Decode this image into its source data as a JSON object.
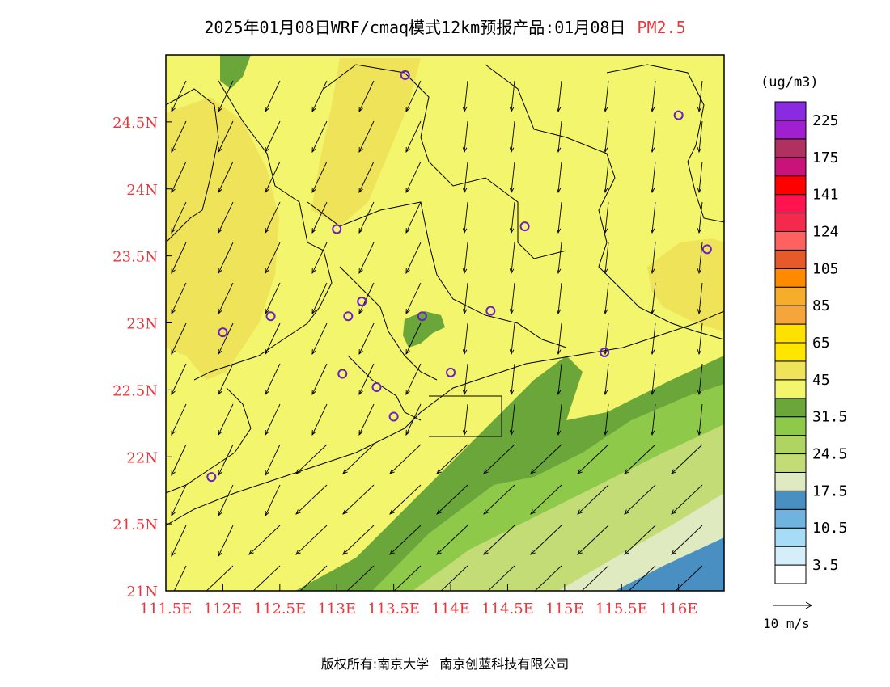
{
  "title": {
    "main": "2025年01月08日WRF/cmaq模式12km预报产品:01月08日",
    "pollutant": "PM2.5"
  },
  "colors": {
    "axis_label": "#e8383d",
    "title_pollutant": "#e8383d",
    "station_marker": "#6a1fc9",
    "base_fill": "#f3f56c",
    "light_orange_fill": "#efe35a",
    "green_dark": "#6aa63a",
    "green_mid": "#8ec94a",
    "green_light": "#c3dc76",
    "green_pale": "#e0eac0",
    "blue": "#4a8fc2"
  },
  "axes": {
    "x_ticks": [
      "111.5E",
      "112E",
      "112.5E",
      "113E",
      "113.5E",
      "114E",
      "114.5E",
      "115E",
      "115.5E",
      "116E"
    ],
    "y_ticks": [
      "21N",
      "21.5N",
      "22N",
      "22.5N",
      "23N",
      "23.5N",
      "24N",
      "24.5N"
    ],
    "lon_range": [
      111.5,
      116.4
    ],
    "lat_range": [
      21.0,
      25.0
    ]
  },
  "legend": {
    "unit": "(ug/m3)",
    "colors": [
      "#ffffff",
      "#d6eefa",
      "#a6dcf5",
      "#6fb4e0",
      "#4a8fc2",
      "#e0eac0",
      "#c3dc76",
      "#b0d462",
      "#8ec94a",
      "#6aa63a",
      "#f3f56c",
      "#efe35a",
      "#ffe600",
      "#ffe100",
      "#f6a53a",
      "#f6ad2a",
      "#ff8a00",
      "#e65a2a",
      "#ff6060",
      "#f32a4e",
      "#ff1450",
      "#ff0000",
      "#c8147a",
      "#b03060",
      "#a020d0",
      "#8a2be2"
    ],
    "labels": [
      "3.5",
      "10.5",
      "17.5",
      "24.5",
      "31.5",
      "45",
      "65",
      "85",
      "105",
      "124",
      "141",
      "175",
      "225"
    ]
  },
  "wind": {
    "reference": "10 m/s"
  },
  "stations": [
    [
      113.6,
      24.85
    ],
    [
      116.0,
      24.55
    ],
    [
      113.0,
      23.7
    ],
    [
      114.65,
      23.72
    ],
    [
      116.25,
      23.55
    ],
    [
      112.0,
      22.93
    ],
    [
      112.42,
      23.05
    ],
    [
      113.22,
      23.16
    ],
    [
      113.1,
      23.05
    ],
    [
      113.75,
      23.05
    ],
    [
      114.35,
      23.09
    ],
    [
      113.05,
      22.62
    ],
    [
      113.35,
      22.52
    ],
    [
      114.0,
      22.63
    ],
    [
      115.35,
      22.78
    ],
    [
      113.5,
      22.3
    ],
    [
      111.9,
      21.85
    ]
  ],
  "footer": {
    "left": "版权所有:南京大学",
    "right": "南京创蓝科技有限公司"
  }
}
